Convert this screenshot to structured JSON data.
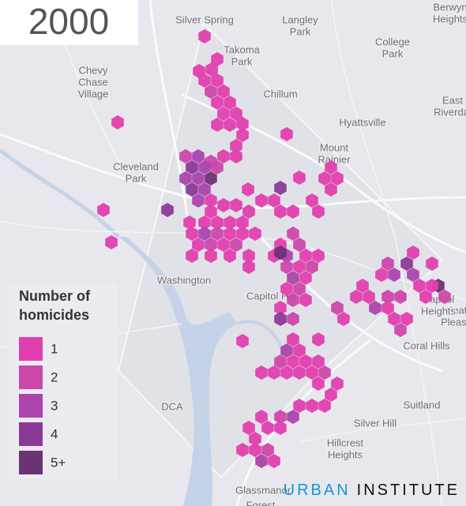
{
  "year": "2000",
  "legend": {
    "title": [
      "Number of",
      "homicides"
    ],
    "items": [
      {
        "label": "1",
        "color": "#e23fae"
      },
      {
        "label": "2",
        "color": "#cc47aa"
      },
      {
        "label": "3",
        "color": "#ab45ad"
      },
      {
        "label": "4",
        "color": "#8b3998"
      },
      {
        "label": "5+",
        "color": "#6c3372"
      }
    ]
  },
  "logo": {
    "first": "URBAN",
    "second": "INSTITUTE"
  },
  "places": [
    {
      "lines": [
        "Silver Spring"
      ]
    },
    {
      "lines": [
        "Langley",
        "Park"
      ]
    },
    {
      "lines": [
        "Takoma",
        "Park"
      ]
    },
    {
      "lines": [
        "Chevy",
        "Chase",
        "Village"
      ]
    },
    {
      "lines": [
        "Chillum"
      ]
    },
    {
      "lines": [
        "College",
        "Park"
      ]
    },
    {
      "lines": [
        "East",
        "Riverdal"
      ]
    },
    {
      "lines": [
        "Hyattsville"
      ]
    },
    {
      "lines": [
        "Mount",
        "Rainier"
      ]
    },
    {
      "lines": [
        "Cleveland",
        "Park"
      ]
    },
    {
      "lines": [
        "Washington"
      ]
    },
    {
      "lines": [
        "Capitol Hill"
      ]
    },
    {
      "lines": [
        "Coral Hills"
      ]
    },
    {
      "lines": [
        "Suitland"
      ]
    },
    {
      "lines": [
        "Silver Hill"
      ]
    },
    {
      "lines": [
        "Hillcrest",
        "Heights"
      ]
    },
    {
      "lines": [
        "Glassmanor"
      ]
    },
    {
      "lines": [
        "Seat",
        "Pleasa"
      ]
    },
    {
      "lines": [
        "Capitol",
        "Heights"
      ]
    },
    {
      "lines": [
        "Berwyn",
        "Heights"
      ]
    },
    {
      "lines": [
        "Forest"
      ]
    },
    {
      "lines": [
        "DCA"
      ]
    }
  ],
  "homicides": [
    1,
    1,
    1,
    1,
    1,
    1,
    2,
    1,
    1,
    1,
    1,
    1,
    1,
    1,
    1,
    1,
    1,
    1,
    1,
    1,
    1,
    2,
    3,
    2,
    4,
    3,
    2,
    3,
    3,
    5,
    4,
    3,
    3,
    1,
    4,
    1,
    1,
    1,
    1,
    4,
    1,
    1,
    1,
    1,
    1,
    1,
    1,
    1,
    1,
    1,
    1,
    1,
    1,
    1,
    1,
    1,
    1,
    1,
    1,
    3,
    2,
    1,
    1,
    1,
    1,
    2,
    1,
    2,
    1,
    1,
    1,
    1,
    1,
    1,
    2,
    1,
    2,
    3,
    1,
    5,
    1,
    1,
    2,
    1,
    2,
    3,
    1,
    1,
    2,
    2,
    1,
    1,
    4,
    2,
    2,
    1,
    1,
    1,
    1,
    1,
    2,
    3,
    4,
    3,
    1,
    5,
    1,
    2,
    1,
    1,
    1,
    3,
    2,
    2,
    1,
    1,
    2,
    1,
    1,
    1,
    1,
    3,
    2,
    1,
    1,
    1,
    1,
    1,
    1,
    1,
    1,
    1,
    2,
    1,
    1,
    1,
    1,
    1,
    1,
    3,
    2,
    1,
    1,
    1,
    1,
    1,
    1,
    1,
    2,
    1,
    3
  ]
}
